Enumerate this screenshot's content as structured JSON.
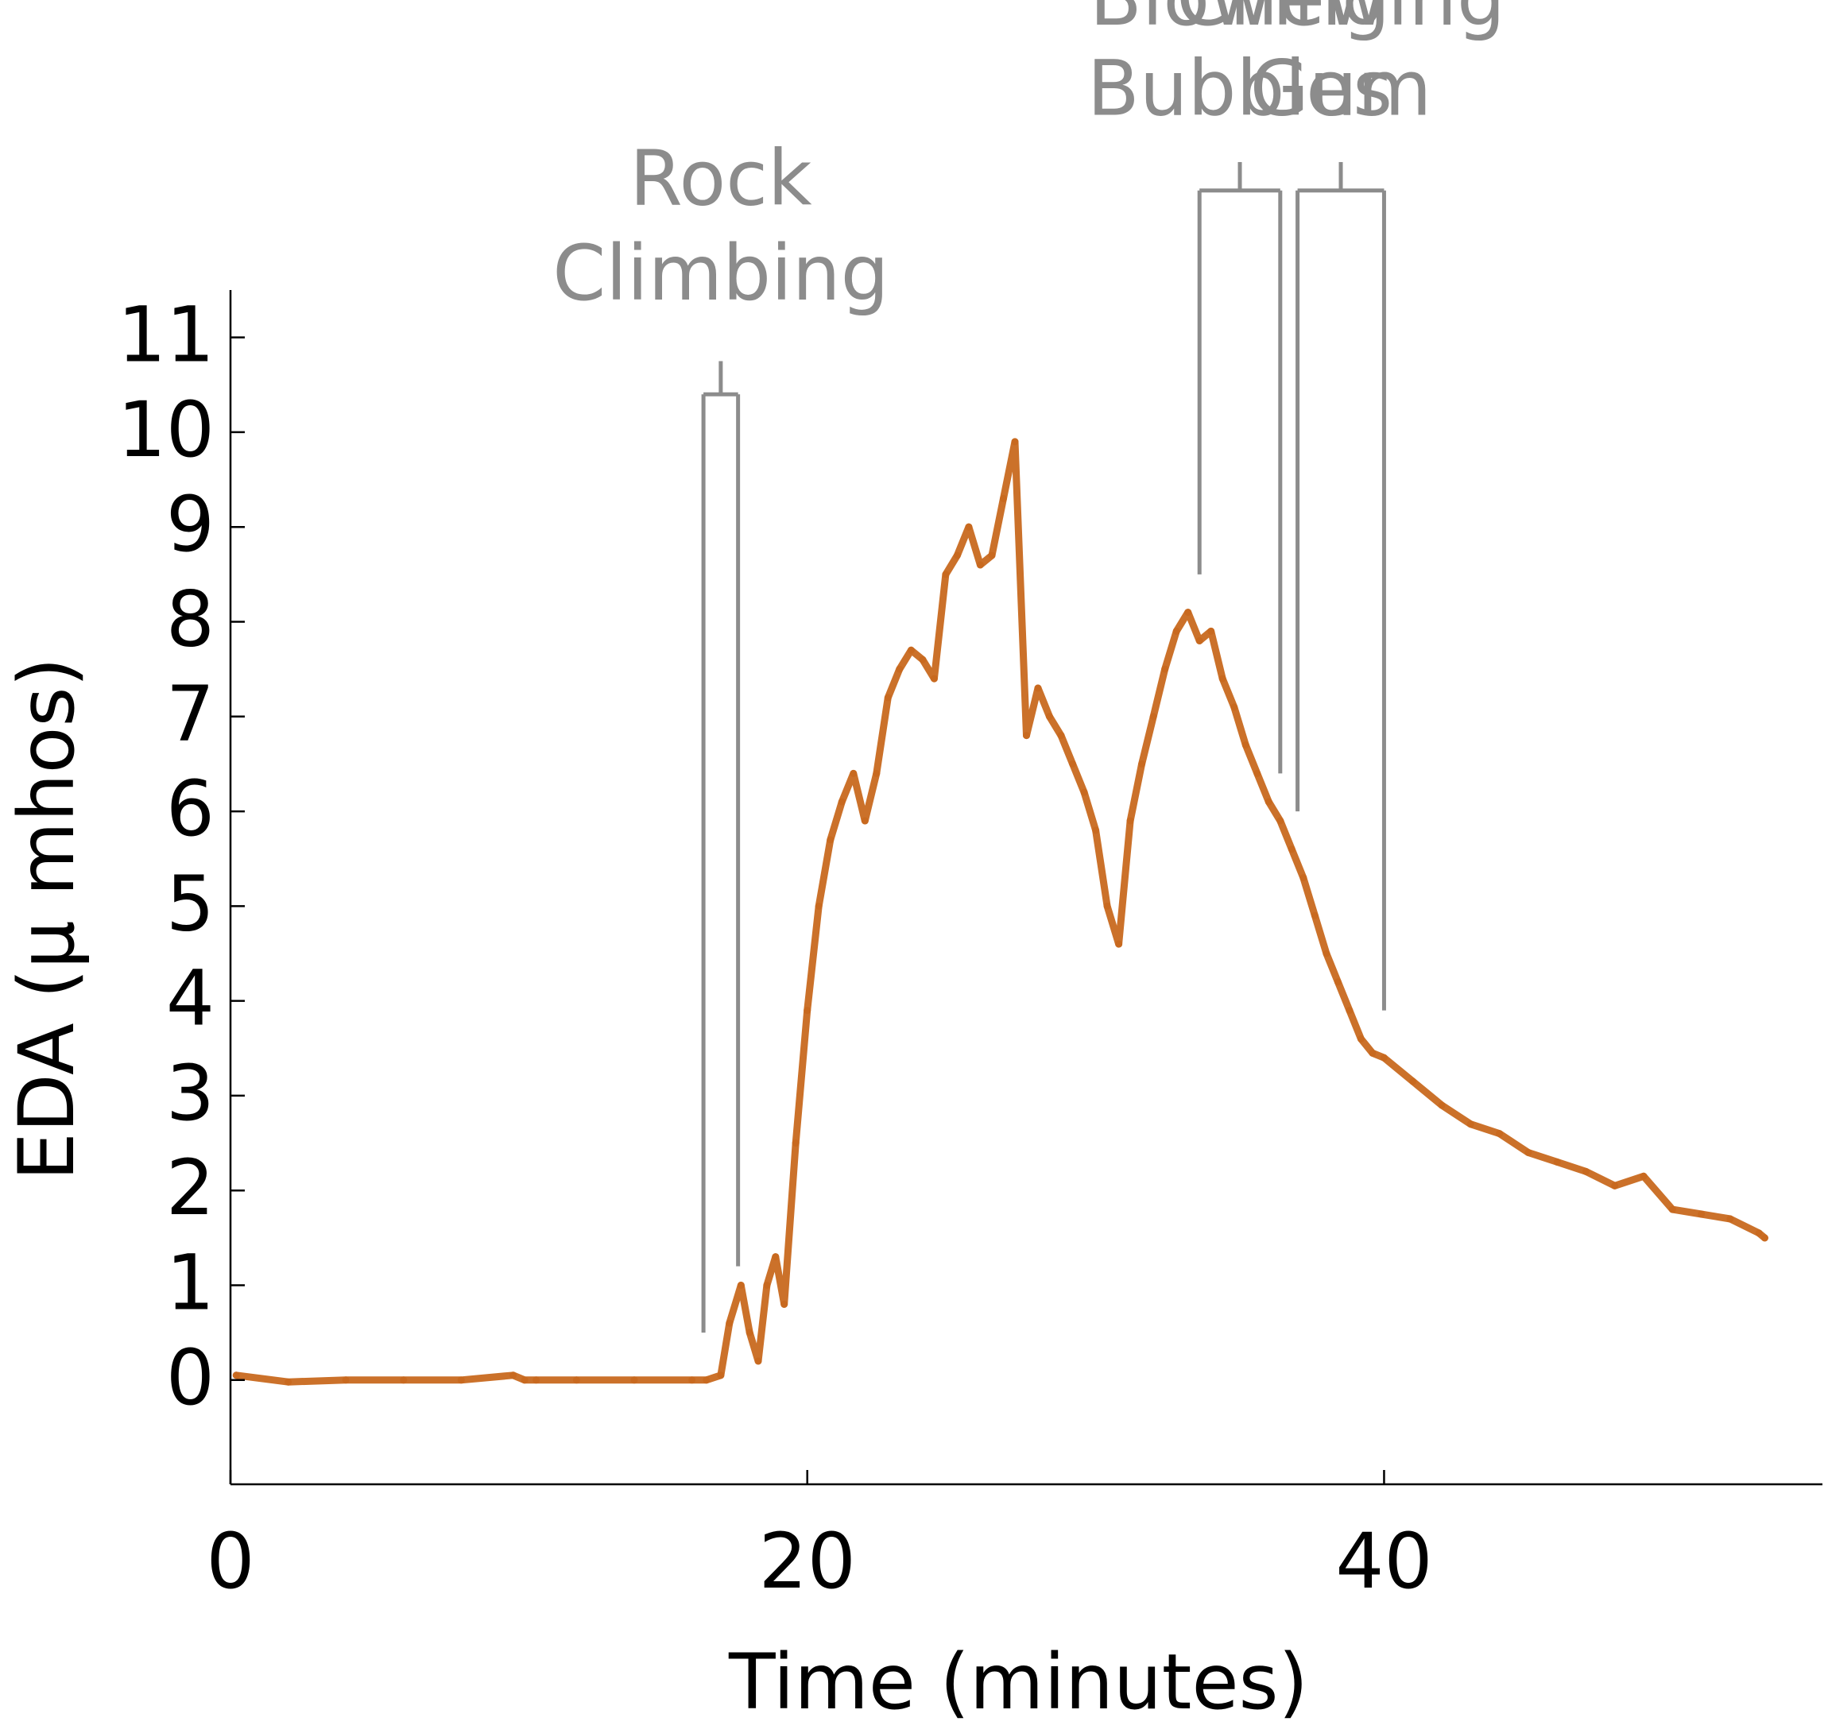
{
  "chart_data": {
    "type": "line",
    "xlabel": "Time (minutes)",
    "ylabel": "EDA (μ mhos)",
    "xlim": [
      0,
      55.2
    ],
    "ylim": [
      -1.1,
      11.5
    ],
    "xticks": [
      0,
      20,
      40
    ],
    "xtick_labels": [
      "0",
      "20",
      "40"
    ],
    "yticks": [
      0,
      1,
      2,
      3,
      4,
      5,
      6,
      7,
      8,
      9,
      10,
      11
    ],
    "ytick_labels": [
      "0",
      "1",
      "2",
      "3",
      "4",
      "5",
      "6",
      "7",
      "8",
      "9",
      "10",
      "11"
    ],
    "grid": false,
    "series": [
      {
        "color": "#c8691f",
        "x": [
          0.2,
          2,
          4,
          6,
          8,
          9.8,
          10.2,
          10.6,
          12,
          14,
          16,
          16.5,
          17,
          17.3,
          17.7,
          18,
          18.3,
          18.6,
          18.9,
          19.2,
          19.6,
          20,
          20.4,
          20.8,
          21.2,
          21.6,
          22,
          22.4,
          22.8,
          23.2,
          23.6,
          24,
          24.4,
          24.8,
          25.2,
          25.6,
          26,
          26.4,
          26.8,
          27.2,
          27.6,
          28,
          28.4,
          28.8,
          29.2,
          29.6,
          30,
          30.4,
          30.8,
          31.2,
          31.6,
          32,
          32.4,
          32.8,
          33.2,
          33.6,
          34,
          34.4,
          34.8,
          35.2,
          35.6,
          36,
          36.4,
          36.8,
          37.2,
          37.6,
          38,
          38.4,
          38.8,
          39.2,
          39.6,
          40,
          41,
          42,
          43,
          44,
          45,
          46,
          47,
          48,
          49,
          50,
          51,
          52,
          53,
          53.2
        ],
        "values": [
          0.05,
          -0.02,
          0.0,
          0.0,
          0.0,
          0.05,
          0.0,
          0.0,
          0.0,
          0.0,
          0.0,
          0.0,
          0.05,
          0.6,
          1.0,
          0.5,
          0.2,
          1.0,
          1.3,
          0.8,
          2.5,
          3.9,
          5.0,
          5.7,
          6.1,
          6.4,
          5.9,
          6.4,
          7.2,
          7.5,
          7.7,
          7.6,
          7.4,
          8.5,
          8.7,
          9.0,
          8.6,
          8.7,
          9.3,
          9.9,
          6.8,
          7.3,
          7.0,
          6.8,
          6.5,
          6.2,
          5.8,
          5.0,
          4.6,
          5.9,
          6.5,
          7.0,
          7.5,
          7.9,
          8.1,
          7.8,
          7.9,
          7.4,
          7.1,
          6.7,
          6.4,
          6.1,
          5.9,
          5.6,
          5.3,
          4.9,
          4.5,
          4.2,
          3.9,
          3.6,
          3.45,
          3.4,
          3.15,
          2.9,
          2.7,
          2.6,
          2.4,
          2.3,
          2.2,
          2.05,
          2.15,
          1.8,
          1.75,
          1.7,
          1.55,
          1.5
        ]
      }
    ],
    "annotations": [
      {
        "label_lines": [
          "Rock",
          "Climbing"
        ],
        "x_start": 16.4,
        "x_end": 17.6,
        "bracket_y": 10.4,
        "left_bottom": 0.5,
        "right_bottom": 1.2,
        "stem_top": 10.75,
        "label_y": [
          12.4,
          11.4
        ]
      },
      {
        "label_lines": [
          "Blowing",
          "Bubbles"
        ],
        "x_start": 33.6,
        "x_end": 36.4,
        "bracket_y": 12.55,
        "left_bottom": 8.5,
        "right_bottom": 6.4,
        "stem_top": 12.85,
        "label_y": [
          14.3,
          13.35
        ]
      },
      {
        "label_lines": [
          "Chewing",
          "Gum"
        ],
        "x_start": 37.0,
        "x_end": 40.0,
        "bracket_y": 12.55,
        "left_bottom": 6.0,
        "right_bottom": 3.9,
        "stem_top": 12.85,
        "label_y": [
          14.3,
          13.35
        ]
      }
    ]
  }
}
